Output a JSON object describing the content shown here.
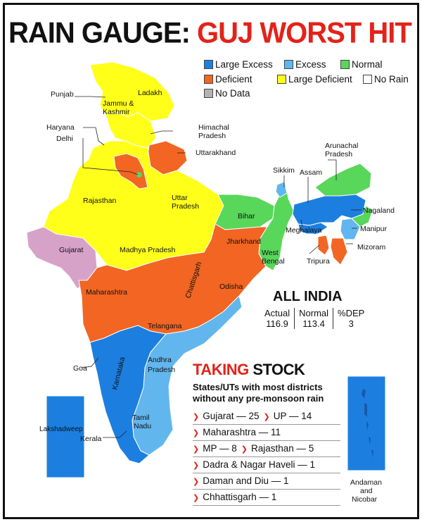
{
  "title": {
    "part1": "RAIN GAUGE: ",
    "part2": "GUJ WORST HIT"
  },
  "colors": {
    "large_excess": "#1c7fe0",
    "excess": "#62b6ee",
    "normal": "#58d75a",
    "deficient": "#f26522",
    "large_deficient": "#ffff1a",
    "no_rain": "#ffffff",
    "no_data": "#b3b3b3",
    "gujarat": "#d7a2c8",
    "title_red": "#e2231a"
  },
  "legend": {
    "large_excess": "Large Excess",
    "excess": "Excess",
    "normal": "Normal",
    "deficient": "Deficient",
    "large_deficient": "Large Deficient",
    "no_rain": "No Rain",
    "no_data": "No Data"
  },
  "labels": {
    "punjab": "Punjab",
    "jk1": "Jammu &",
    "jk2": "Kashmir",
    "ladakh": "Ladakh",
    "himachal1": "Himachal",
    "himachal2": "Pradesh",
    "haryana": "Haryana",
    "delhi": "Delhi",
    "uttarakhand": "Uttarakhand",
    "arunachal1": "Arunachal",
    "arunachal2": "Pradesh",
    "sikkim": "Sikkim",
    "assam": "Assam",
    "rajasthan": "Rajasthan",
    "up1": "Uttar",
    "up2": "Pradesh",
    "bihar": "Bihar",
    "nagaland": "Nagaland",
    "meghalaya": "Meghalaya",
    "manipur": "Manipur",
    "gujarat": "Gujarat",
    "jharkhand": "Jharkhand",
    "mp": "Madhya Pradesh",
    "wb1": "West",
    "wb2": "Bengal",
    "mizoram": "Mizoram",
    "tripura": "Tripura",
    "chhattisgarh": "Chattisgarh",
    "maharashtra": "Maharashtra",
    "odisha": "Odisha",
    "telangana": "Telangana",
    "goa": "Goa",
    "karnataka": "Karnataka",
    "ap1": "Andhra",
    "ap2": "Pradesh",
    "lakshadweep": "Lakshadweep",
    "kerala": "Kerala",
    "tn1": "Tamil",
    "tn2": "Nadu",
    "andaman1": "Andaman",
    "andaman2": "and",
    "andaman3": "Nicobar"
  },
  "all_india": {
    "heading": "ALL INDIA",
    "actual_label": "Actual",
    "actual_value": "116.9",
    "normal_label": "Normal",
    "normal_value": "113.4",
    "dep_label": "%DEP",
    "dep_value": "3"
  },
  "taking_stock": {
    "heading_red": "TAKING",
    "heading_black": " STOCK",
    "subtitle": "States/UTs with most districts without any pre-monsoon rain",
    "rows": [
      [
        "Gujarat — 25",
        "UP — 14"
      ],
      [
        "Maharashtra — 11"
      ],
      [
        "MP — 8",
        "Rajasthan — 5"
      ],
      [
        "Dadra & Nagar Haveli — 1"
      ],
      [
        "Daman and Diu — 1"
      ],
      [
        "Chhattisgarh — 1"
      ]
    ],
    "values": {
      "gujarat": 25,
      "up": 14,
      "maharashtra": 11,
      "mp": 8,
      "rajasthan": 5,
      "dadra_nagar_haveli": 1,
      "daman_diu": 1,
      "chhattisgarh": 1
    }
  }
}
